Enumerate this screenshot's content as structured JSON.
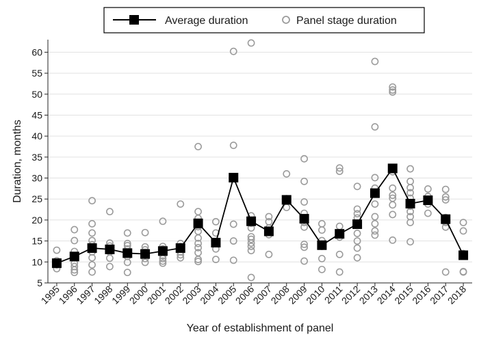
{
  "chart_data": {
    "type": "scatter",
    "title": "",
    "xlabel": "Year of establishment of panel",
    "ylabel": "Duration, months",
    "ylim": [
      5,
      63
    ],
    "yticks": [
      5,
      10,
      15,
      20,
      25,
      30,
      35,
      40,
      45,
      50,
      55,
      60
    ],
    "x": [
      "1995",
      "1996",
      "1997",
      "1998",
      "1999",
      "2000",
      "2001",
      "2002",
      "2003",
      "2004",
      "2005",
      "2006",
      "2007",
      "2008",
      "2009",
      "2010",
      "2011",
      "2012",
      "2013",
      "2014",
      "2015",
      "2016",
      "2017",
      "2018"
    ],
    "grid": "horizontal",
    "legend_position": "top",
    "series": [
      {
        "name": "Average duration",
        "style": "line-square",
        "color": "#000000",
        "values": [
          9.7,
          11.3,
          13.3,
          13.0,
          12.1,
          11.9,
          12.6,
          13.3,
          19.2,
          14.6,
          30.1,
          19.7,
          17.3,
          24.8,
          20.3,
          14.0,
          16.7,
          19.0,
          26.4,
          32.3,
          23.9,
          24.7,
          20.2,
          11.6
        ]
      },
      {
        "name": "Panel stage duration",
        "style": "hollow-circle",
        "color": "#9b9b9b",
        "points": [
          [
            "1995",
            12.8
          ],
          [
            "1995",
            10.3
          ],
          [
            "1995",
            9.3
          ],
          [
            "1995",
            8.4
          ],
          [
            "1996",
            17.7
          ],
          [
            "1996",
            15.1
          ],
          [
            "1996",
            12.5
          ],
          [
            "1996",
            11.0
          ],
          [
            "1996",
            9.7
          ],
          [
            "1996",
            8.9
          ],
          [
            "1996",
            8.1
          ],
          [
            "1996",
            7.5
          ],
          [
            "1997",
            24.6
          ],
          [
            "1997",
            19.1
          ],
          [
            "1997",
            16.9
          ],
          [
            "1997",
            15.1
          ],
          [
            "1997",
            14.1
          ],
          [
            "1997",
            13.1
          ],
          [
            "1997",
            12.4
          ],
          [
            "1997",
            11.0
          ],
          [
            "1997",
            9.3
          ],
          [
            "1997",
            7.6
          ],
          [
            "1998",
            22.0
          ],
          [
            "1998",
            14.5
          ],
          [
            "1998",
            13.8
          ],
          [
            "1998",
            13.1
          ],
          [
            "1998",
            12.4
          ],
          [
            "1998",
            10.9
          ],
          [
            "1998",
            8.9
          ],
          [
            "1999",
            16.9
          ],
          [
            "1999",
            14.4
          ],
          [
            "1999",
            13.9
          ],
          [
            "1999",
            13.1
          ],
          [
            "1999",
            12.1
          ],
          [
            "1999",
            11.3
          ],
          [
            "1999",
            9.9
          ],
          [
            "1999",
            7.5
          ],
          [
            "2000",
            17.0
          ],
          [
            "2000",
            13.6
          ],
          [
            "2000",
            12.9
          ],
          [
            "2000",
            12.3
          ],
          [
            "2000",
            10.8
          ],
          [
            "2000",
            9.9
          ],
          [
            "2001",
            19.7
          ],
          [
            "2001",
            13.7
          ],
          [
            "2001",
            13.1
          ],
          [
            "2001",
            12.4
          ],
          [
            "2001",
            11.5
          ],
          [
            "2001",
            10.8
          ],
          [
            "2001",
            10.2
          ],
          [
            "2001",
            9.7
          ],
          [
            "2002",
            23.8
          ],
          [
            "2002",
            14.4
          ],
          [
            "2002",
            13.7
          ],
          [
            "2002",
            12.4
          ],
          [
            "2002",
            11.7
          ],
          [
            "2002",
            11.0
          ],
          [
            "2003",
            37.5
          ],
          [
            "2003",
            22.0
          ],
          [
            "2003",
            20.4
          ],
          [
            "2003",
            18.4
          ],
          [
            "2003",
            17.3
          ],
          [
            "2003",
            15.7
          ],
          [
            "2003",
            14.4
          ],
          [
            "2003",
            13.4
          ],
          [
            "2003",
            12.2
          ],
          [
            "2003",
            10.6
          ],
          [
            "2003",
            10.1
          ],
          [
            "2004",
            19.6
          ],
          [
            "2004",
            16.9
          ],
          [
            "2004",
            14.4
          ],
          [
            "2004",
            13.1
          ],
          [
            "2004",
            10.6
          ],
          [
            "2005",
            60.2
          ],
          [
            "2005",
            37.8
          ],
          [
            "2005",
            30.0
          ],
          [
            "2005",
            19.0
          ],
          [
            "2005",
            15.0
          ],
          [
            "2005",
            10.4
          ],
          [
            "2006",
            62.2
          ],
          [
            "2006",
            21.0
          ],
          [
            "2006",
            19.2
          ],
          [
            "2006",
            18.1
          ],
          [
            "2006",
            16.0
          ],
          [
            "2006",
            15.4
          ],
          [
            "2006",
            14.5
          ],
          [
            "2006",
            13.7
          ],
          [
            "2006",
            12.7
          ],
          [
            "2006",
            6.3
          ],
          [
            "2007",
            20.8
          ],
          [
            "2007",
            19.6
          ],
          [
            "2007",
            18.1
          ],
          [
            "2007",
            17.6
          ],
          [
            "2007",
            16.5
          ],
          [
            "2007",
            11.8
          ],
          [
            "2008",
            31.0
          ],
          [
            "2008",
            25.1
          ],
          [
            "2008",
            23.0
          ],
          [
            "2009",
            34.6
          ],
          [
            "2009",
            29.2
          ],
          [
            "2009",
            24.3
          ],
          [
            "2009",
            21.6
          ],
          [
            "2009",
            19.4
          ],
          [
            "2009",
            18.3
          ],
          [
            "2009",
            14.2
          ],
          [
            "2009",
            13.5
          ],
          [
            "2009",
            10.2
          ],
          [
            "2010",
            19.1
          ],
          [
            "2010",
            17.6
          ],
          [
            "2010",
            15.1
          ],
          [
            "2010",
            13.7
          ],
          [
            "2010",
            10.8
          ],
          [
            "2010",
            8.2
          ],
          [
            "2011",
            32.4
          ],
          [
            "2011",
            31.6
          ],
          [
            "2011",
            18.5
          ],
          [
            "2011",
            16.9
          ],
          [
            "2011",
            15.9
          ],
          [
            "2011",
            11.8
          ],
          [
            "2011",
            7.6
          ],
          [
            "2012",
            28.0
          ],
          [
            "2012",
            22.6
          ],
          [
            "2012",
            21.5
          ],
          [
            "2012",
            20.5
          ],
          [
            "2012",
            18.8
          ],
          [
            "2012",
            16.8
          ],
          [
            "2012",
            15.0
          ],
          [
            "2012",
            13.3
          ],
          [
            "2012",
            11.0
          ],
          [
            "2013",
            57.8
          ],
          [
            "2013",
            42.2
          ],
          [
            "2013",
            30.1
          ],
          [
            "2013",
            27.6
          ],
          [
            "2013",
            26.5
          ],
          [
            "2013",
            23.8
          ],
          [
            "2013",
            20.8
          ],
          [
            "2013",
            19.1
          ],
          [
            "2013",
            17.4
          ],
          [
            "2013",
            16.4
          ],
          [
            "2014",
            51.7
          ],
          [
            "2014",
            51.0
          ],
          [
            "2014",
            50.5
          ],
          [
            "2014",
            32.5
          ],
          [
            "2014",
            31.5
          ],
          [
            "2014",
            27.6
          ],
          [
            "2014",
            25.9
          ],
          [
            "2014",
            25.2
          ],
          [
            "2014",
            23.6
          ],
          [
            "2014",
            21.3
          ],
          [
            "2014",
            15.2
          ],
          [
            "2015",
            32.2
          ],
          [
            "2015",
            29.2
          ],
          [
            "2015",
            27.7
          ],
          [
            "2015",
            26.5
          ],
          [
            "2015",
            25.2
          ],
          [
            "2015",
            23.3
          ],
          [
            "2015",
            22.0
          ],
          [
            "2015",
            20.8
          ],
          [
            "2015",
            19.4
          ],
          [
            "2015",
            14.8
          ],
          [
            "2016",
            27.4
          ],
          [
            "2016",
            25.6
          ],
          [
            "2016",
            24.6
          ],
          [
            "2016",
            23.8
          ],
          [
            "2016",
            21.6
          ],
          [
            "2017",
            27.3
          ],
          [
            "2017",
            25.5
          ],
          [
            "2017",
            24.8
          ],
          [
            "2017",
            20.6
          ],
          [
            "2017",
            19.4
          ],
          [
            "2017",
            18.3
          ],
          [
            "2017",
            7.6
          ],
          [
            "2018",
            19.4
          ],
          [
            "2018",
            17.4
          ],
          [
            "2018",
            12.0
          ],
          [
            "2018",
            11.5
          ],
          [
            "2018",
            7.7
          ],
          [
            "2018",
            7.6
          ]
        ]
      }
    ]
  }
}
